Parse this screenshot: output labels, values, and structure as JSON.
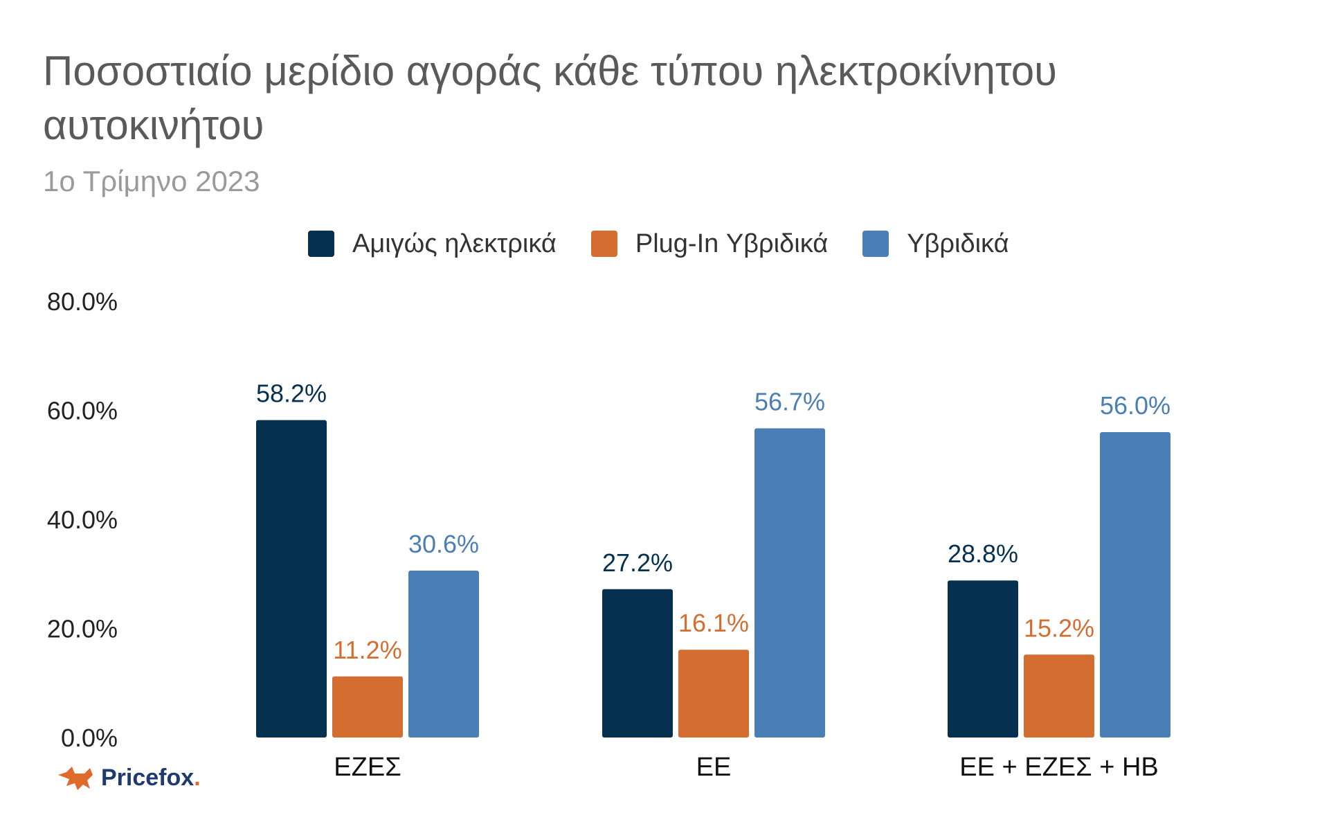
{
  "chart_data": {
    "type": "bar",
    "title": "Ποσοστιαίο μερίδιο αγοράς κάθε τύπου ηλεκτροκίνητου αυτοκινήτου",
    "subtitle": "1ο Τρίμηνο 2023",
    "categories": [
      "ΕΖΕΣ",
      "ΕΕ",
      "ΕΕ + ΕΖΕΣ + ΗΒ"
    ],
    "series": [
      {
        "name": "Αμιγώς ηλεκτρικά",
        "color": "#06304f",
        "values": [
          58.2,
          27.2,
          28.8
        ],
        "labels": [
          "58.2%",
          "27.2%",
          "28.8%"
        ]
      },
      {
        "name": "Plug-In Υβριδικά",
        "color": "#d46e30",
        "values": [
          11.2,
          16.1,
          15.2
        ],
        "labels": [
          "11.2%",
          "16.1%",
          "15.2%"
        ]
      },
      {
        "name": "Υβριδικά",
        "color": "#4a7fb5",
        "values": [
          30.6,
          56.7,
          56.0
        ],
        "labels": [
          "30.6%",
          "56.7%",
          "56.0%"
        ]
      }
    ],
    "ylim": [
      0,
      80
    ],
    "yticks": [
      0,
      20,
      40,
      60,
      80
    ],
    "ytick_labels": [
      "0.0%",
      "20.0%",
      "40.0%",
      "60.0%",
      "80.0%"
    ],
    "xlabel": "",
    "ylabel": "",
    "grid": false,
    "legend_position": "top"
  },
  "logo": {
    "text": "Pricefox",
    "suffix": "."
  }
}
